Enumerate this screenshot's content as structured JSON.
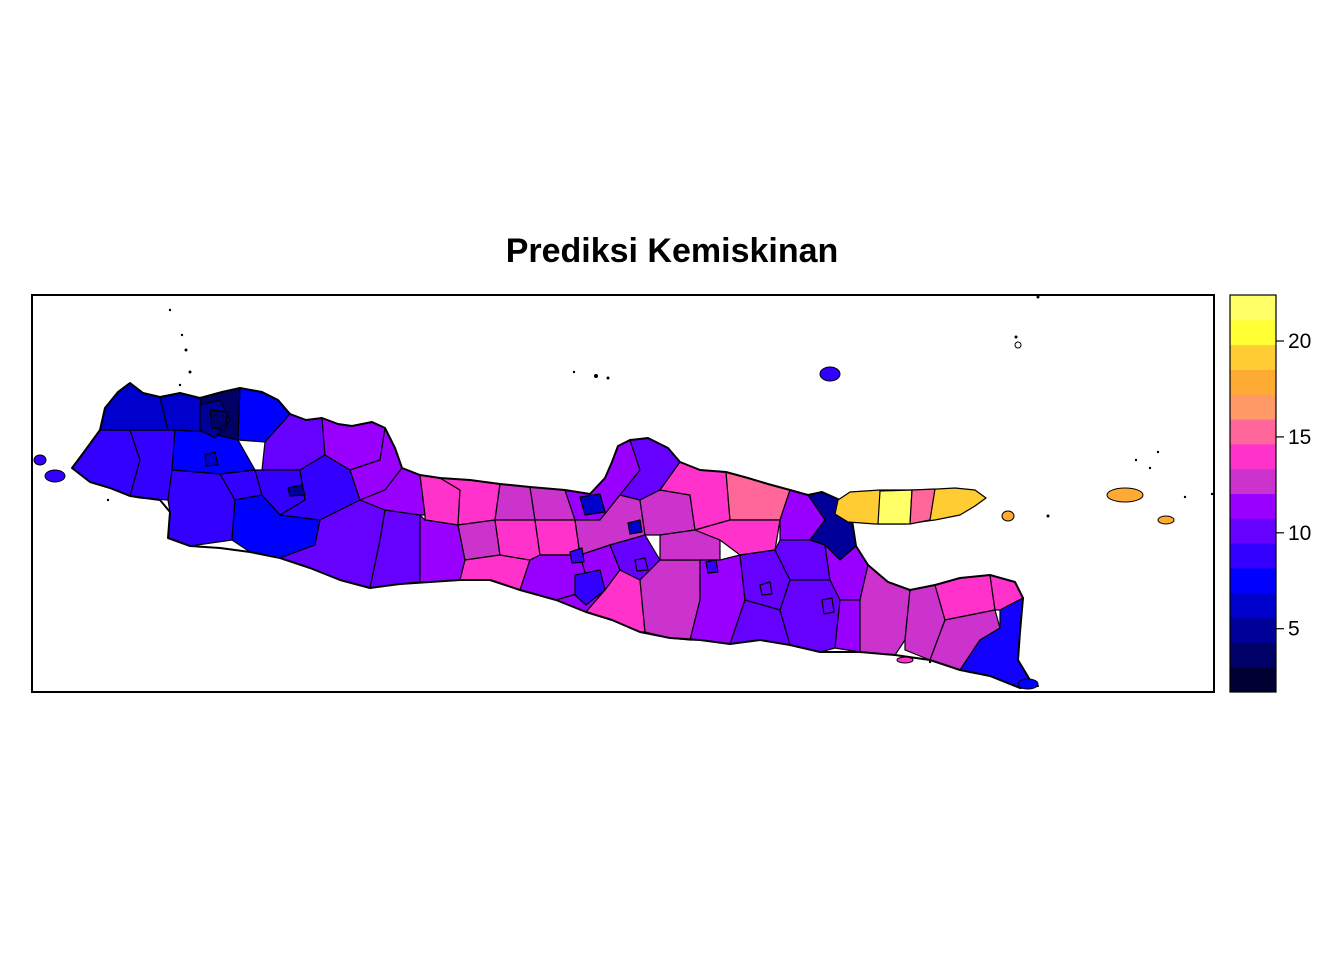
{
  "chart_data": {
    "type": "choropleth",
    "title": "Prediksi Kemiskinan",
    "palette": [
      "#000033",
      "#000066",
      "#000099",
      "#0000CC",
      "#0000FF",
      "#3300FF",
      "#6600FF",
      "#9900FF",
      "#CC33CC",
      "#FF33CC",
      "#FF6699",
      "#FF9966",
      "#FFAA33",
      "#FFCC33",
      "#FFFF33",
      "#FFFF66"
    ],
    "legend": {
      "position": "right",
      "min": 1.7,
      "max": 22.4,
      "ticks": [
        "5",
        "10",
        "15",
        "20"
      ],
      "tick_values": [
        5,
        10,
        15,
        20
      ]
    }
  }
}
